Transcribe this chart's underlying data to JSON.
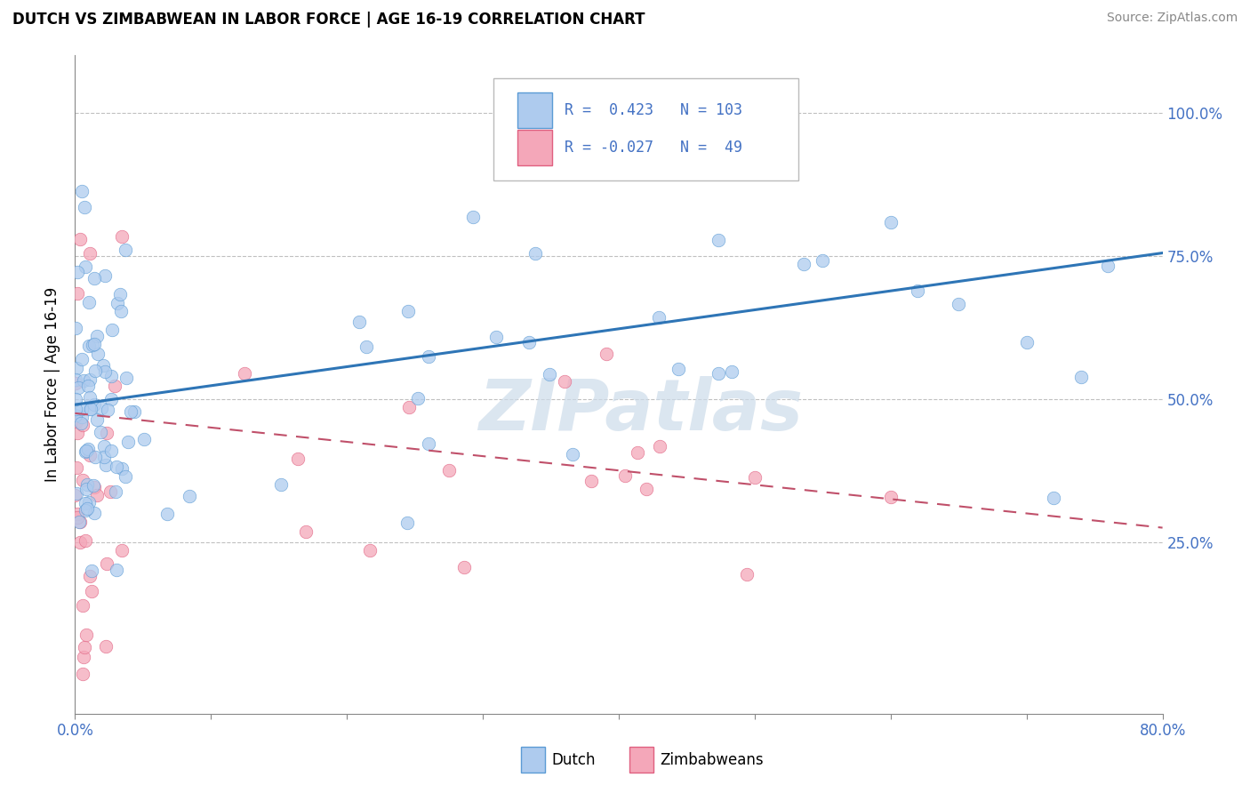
{
  "title": "DUTCH VS ZIMBABWEAN IN LABOR FORCE | AGE 16-19 CORRELATION CHART",
  "source": "Source: ZipAtlas.com",
  "ylabel": "In Labor Force | Age 16-19",
  "xlim": [
    0.0,
    0.8
  ],
  "ylim": [
    -0.05,
    1.1
  ],
  "ytick_positions": [
    0.25,
    0.5,
    0.75,
    1.0
  ],
  "ytick_labels": [
    "25.0%",
    "50.0%",
    "75.0%",
    "100.0%"
  ],
  "dutch_R": 0.423,
  "dutch_N": 103,
  "zimbabwean_R": -0.027,
  "zimbabwean_N": 49,
  "dutch_color": "#aecbee",
  "dutch_edge_color": "#5b9bd5",
  "dutch_line_color": "#2e75b6",
  "zimbabwean_color": "#f4a7b9",
  "zimbabwean_edge_color": "#e06080",
  "zimbabwean_line_color": "#c0506a",
  "background_color": "#ffffff",
  "grid_color": "#c0c0c0",
  "watermark": "ZIPatlas",
  "dutch_line_start_y": 0.49,
  "dutch_line_end_y": 0.755,
  "zim_line_start_y": 0.475,
  "zim_line_end_y": 0.275,
  "title_fontsize": 12,
  "source_fontsize": 10,
  "tick_fontsize": 12,
  "ylabel_fontsize": 12
}
